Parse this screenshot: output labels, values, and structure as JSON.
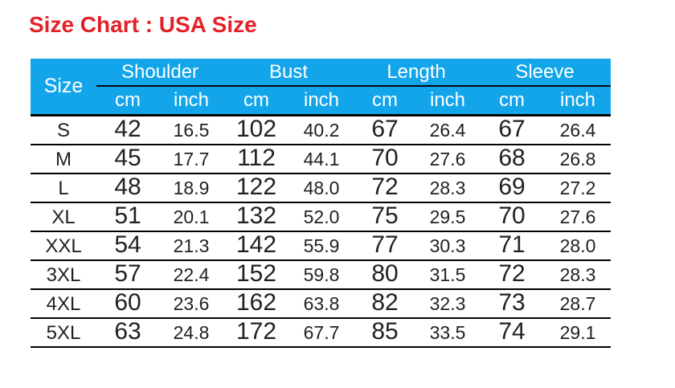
{
  "title": "Size Chart : USA Size",
  "colors": {
    "title": "#e32227",
    "header_bg": "#12a5ea",
    "header_text": "#ffffff",
    "cell_text": "#212121",
    "line": "#000000"
  },
  "table": {
    "size_column_header": "Size",
    "groups": [
      "Shoulder",
      "Bust",
      "Length",
      "Sleeve"
    ],
    "units": [
      "cm",
      "inch",
      "cm",
      "inch",
      "cm",
      "inch",
      "cm",
      "inch"
    ],
    "rows": [
      {
        "size": "S",
        "values": [
          "42",
          "16.5",
          "102",
          "40.2",
          "67",
          "26.4",
          "67",
          "26.4"
        ]
      },
      {
        "size": "M",
        "values": [
          "45",
          "17.7",
          "112",
          "44.1",
          "70",
          "27.6",
          "68",
          "26.8"
        ]
      },
      {
        "size": "L",
        "values": [
          "48",
          "18.9",
          "122",
          "48.0",
          "72",
          "28.3",
          "69",
          "27.2"
        ]
      },
      {
        "size": "XL",
        "values": [
          "51",
          "20.1",
          "132",
          "52.0",
          "75",
          "29.5",
          "70",
          "27.6"
        ]
      },
      {
        "size": "XXL",
        "values": [
          "54",
          "21.3",
          "142",
          "55.9",
          "77",
          "30.3",
          "71",
          "28.0"
        ]
      },
      {
        "size": "3XL",
        "values": [
          "57",
          "22.4",
          "152",
          "59.8",
          "80",
          "31.5",
          "72",
          "28.3"
        ]
      },
      {
        "size": "4XL",
        "values": [
          "60",
          "23.6",
          "162",
          "63.8",
          "82",
          "32.3",
          "73",
          "28.7"
        ]
      },
      {
        "size": "5XL",
        "values": [
          "63",
          "24.8",
          "172",
          "67.7",
          "85",
          "33.5",
          "74",
          "29.1"
        ]
      }
    ]
  },
  "chart_data": {
    "type": "table",
    "title": "Size Chart : USA Size",
    "columns": [
      "Size",
      "Shoulder cm",
      "Shoulder inch",
      "Bust cm",
      "Bust inch",
      "Length cm",
      "Length inch",
      "Sleeve cm",
      "Sleeve inch"
    ],
    "rows": [
      [
        "S",
        42,
        16.5,
        102,
        40.2,
        67,
        26.4,
        67,
        26.4
      ],
      [
        "M",
        45,
        17.7,
        112,
        44.1,
        70,
        27.6,
        68,
        26.8
      ],
      [
        "L",
        48,
        18.9,
        122,
        48.0,
        72,
        28.3,
        69,
        27.2
      ],
      [
        "XL",
        51,
        20.1,
        132,
        52.0,
        75,
        29.5,
        70,
        27.6
      ],
      [
        "XXL",
        54,
        21.3,
        142,
        55.9,
        77,
        30.3,
        71,
        28.0
      ],
      [
        "3XL",
        57,
        22.4,
        152,
        59.8,
        80,
        31.5,
        72,
        28.3
      ],
      [
        "4XL",
        60,
        23.6,
        162,
        63.8,
        82,
        32.3,
        73,
        28.7
      ],
      [
        "5XL",
        63,
        24.8,
        172,
        67.7,
        85,
        33.5,
        74,
        29.1
      ]
    ]
  }
}
